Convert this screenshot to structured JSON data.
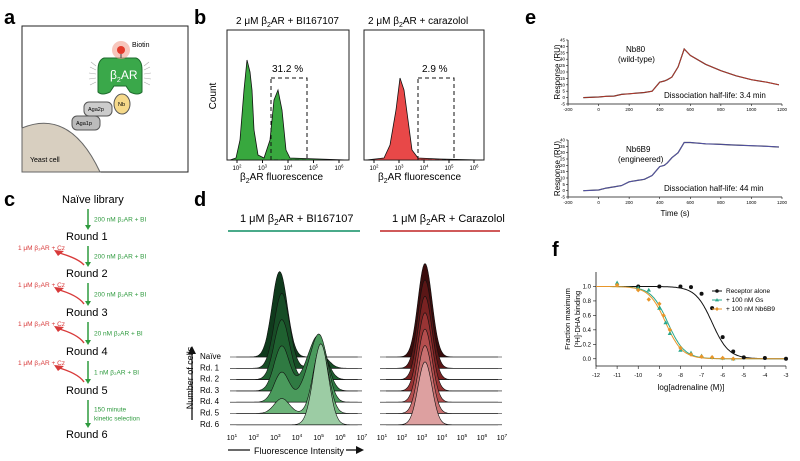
{
  "panels": {
    "a": "a",
    "b": "b",
    "c": "c",
    "d": "d",
    "e": "e",
    "f": "f"
  },
  "colors": {
    "green": "#2e9a3e",
    "red": "#d83a3a",
    "dark_green": "#1e6b2e",
    "purple": "#5a5ab8",
    "orange": "#e8962a",
    "teal": "#2aa88c"
  },
  "panel_a": {
    "biotin": "Biotin",
    "receptor_base": "β",
    "receptor_sub": "2",
    "receptor_tail": "AR",
    "nb": "Nb",
    "aga2p": "Aga2p",
    "aga1p": "Aga1p",
    "cell": "Yeast cell"
  },
  "panel_b": {
    "left_title_a": "2 μM β",
    "left_title_sub": "2",
    "left_title_b": "AR + BI167107",
    "right_title_a": "2 μM β",
    "right_title_sub": "2",
    "right_title_b": "AR + carazolol",
    "ylabel": "Count",
    "xlabel_a": "β",
    "xlabel_sub": "2",
    "xlabel_b": "AR fluorescence",
    "left_pct": "31.2 %",
    "right_pct": "2.9 %",
    "xticks": [
      "10",
      "10",
      "10",
      "10",
      "10"
    ],
    "xtick_exp": [
      "2",
      "3",
      "4",
      "5",
      "6"
    ]
  },
  "panel_c": {
    "rounds": [
      "Naïve library",
      "Round 1",
      "Round 2",
      "Round 3",
      "Round 4",
      "Round 5",
      "Round 6"
    ],
    "pos_steps": [
      "200 nM β2AR + BI",
      "200 nM β2AR + BI",
      "200 nM β2AR + BI",
      "20 nM β2AR + BI",
      "1 nM β2AR + BI",
      "150 minute\nkinetic selection"
    ],
    "pos_steps_lines": [
      [
        "200 nM β₂AR + BI"
      ],
      [
        "200 nM β₂AR + BI"
      ],
      [
        "200 nM β₂AR + BI"
      ],
      [
        "20 nM β₂AR + BI"
      ],
      [
        "1 nM β₂AR + BI"
      ],
      [
        "150 minute",
        "kinetic selection"
      ]
    ],
    "neg_steps": [
      "1 μM β₂AR + Cz",
      "1 μM β₂AR + Cz",
      "1 μM β₂AR + Cz",
      "1 μM β₂AR + Cz"
    ]
  },
  "panel_d": {
    "left_title_a": "1 μM β",
    "left_title_sub": "2",
    "left_title_b": "AR + BI167107",
    "right_title_a": "1 μM β",
    "right_title_sub": "2",
    "right_title_b": "AR + Carazolol",
    "ylabel": "Number of cells",
    "xlabel": "Fluorescence Intensity",
    "row_labels": [
      "Naïve",
      "Rd. 1",
      "Rd. 2",
      "Rd. 3",
      "Rd. 4",
      "Rd. 5",
      "Rd. 6"
    ],
    "xtick_base": "10",
    "xtick_exp": [
      "1",
      "2",
      "3",
      "4",
      "5",
      "6",
      "7"
    ]
  },
  "panel_e": {
    "top_name": "Nb80",
    "top_sub": "(wild-type)",
    "top_half": "Dissociation half-life: 3.4 min",
    "bottom_name": "Nb6B9",
    "bottom_sub": "(engineered)",
    "bottom_half": "Dissociation half-life: 44 min",
    "ylabel": "Response (RU)",
    "xlabel": "Time (s)",
    "xticks": [
      "-200",
      "0",
      "200",
      "400",
      "600",
      "800",
      "1000",
      "1200"
    ],
    "top_yticks": [
      "-5",
      "0",
      "5",
      "10",
      "15",
      "20",
      "25",
      "30",
      "35",
      "40",
      "45"
    ],
    "bottom_yticks": [
      "-5",
      "0",
      "5",
      "10",
      "15",
      "20",
      "25",
      "30",
      "35",
      "40"
    ]
  },
  "chart_data": [
    {
      "type": "line",
      "title": "Nb80 (wild-type)",
      "xlabel": "Time (s)",
      "ylabel": "Response (RU)",
      "xlim": [
        -200,
        1200
      ],
      "ylim": [
        -5,
        45
      ],
      "series": [
        {
          "name": "Nb80",
          "x": [
            -100,
            0,
            50,
            100,
            150,
            200,
            250,
            300,
            350,
            400,
            430,
            450,
            480,
            520,
            560,
            600,
            700,
            800,
            900,
            1000,
            1100,
            1180
          ],
          "values": [
            0,
            0.5,
            1,
            1.2,
            2.5,
            3,
            3.5,
            4,
            5,
            12,
            13,
            14,
            16,
            24,
            38,
            33,
            26,
            21,
            17,
            14,
            12,
            10
          ]
        }
      ]
    },
    {
      "type": "line",
      "title": "Nb6B9 (engineered)",
      "xlabel": "Time (s)",
      "ylabel": "Response (RU)",
      "xlim": [
        -200,
        1200
      ],
      "ylim": [
        -5,
        40
      ],
      "series": [
        {
          "name": "Nb6B9",
          "x": [
            -100,
            0,
            50,
            100,
            150,
            200,
            250,
            300,
            350,
            400,
            430,
            450,
            480,
            520,
            560,
            600,
            700,
            800,
            900,
            1000,
            1100,
            1180
          ],
          "values": [
            0,
            0.5,
            2,
            3,
            4,
            7,
            8,
            9,
            12,
            19,
            20,
            22,
            26,
            30,
            38,
            38,
            37,
            36.5,
            36,
            35.5,
            35,
            34.5
          ]
        }
      ]
    },
    {
      "type": "scatter",
      "title": "",
      "xlabel": "log[adrenaline (M)]",
      "ylabel": "Fraction maximum [3H]-DHA binding",
      "xlim": [
        -12,
        -3
      ],
      "ylim": [
        -0.1,
        1.2
      ],
      "legend": "top-right",
      "series": [
        {
          "name": "Receptor alone",
          "x": [
            -10,
            -9,
            -8,
            -7.5,
            -7,
            -6.5,
            -6,
            -5.5,
            -5,
            -4,
            -3
          ],
          "values": [
            1.0,
            1.0,
            1.0,
            0.99,
            0.9,
            0.7,
            0.3,
            0.1,
            0.02,
            0.01,
            0.0
          ]
        },
        {
          "name": "+ 100 nM Gs",
          "x": [
            -11,
            -10,
            -9.5,
            -9,
            -8.7,
            -8.5,
            -8,
            -7.5,
            -7,
            -6.5,
            -6,
            -5.5
          ],
          "values": [
            1.05,
            0.98,
            0.95,
            0.7,
            0.5,
            0.35,
            0.12,
            0.08,
            0.04,
            0.02,
            0.01,
            0.0
          ]
        },
        {
          "name": "+ 100 nM Nb6B9",
          "x": [
            -11,
            -10,
            -9.5,
            -9,
            -8.8,
            -8.5,
            -8,
            -7.5,
            -7,
            -6.5,
            -6,
            -5.5
          ],
          "values": [
            1.02,
            0.95,
            0.82,
            0.76,
            0.6,
            0.4,
            0.15,
            0.06,
            0.03,
            0.02,
            0.01,
            0.0
          ]
        }
      ]
    }
  ],
  "panel_f": {
    "ylabel1": "Fraction maximum",
    "ylabel2": "[³H]-DHA binding",
    "xlabel": "log[adrenaline (M)]",
    "yticks": [
      "0.0",
      "0.2",
      "0.4",
      "0.6",
      "0.8",
      "1.0"
    ],
    "xticks": [
      "-12",
      "-11",
      "-10",
      "-9",
      "-8",
      "-7",
      "-6",
      "-5",
      "-4",
      "-3"
    ],
    "legend": [
      "Receptor alone",
      "+ 100 nM Gs",
      "+ 100 nM Nb6B9"
    ]
  }
}
